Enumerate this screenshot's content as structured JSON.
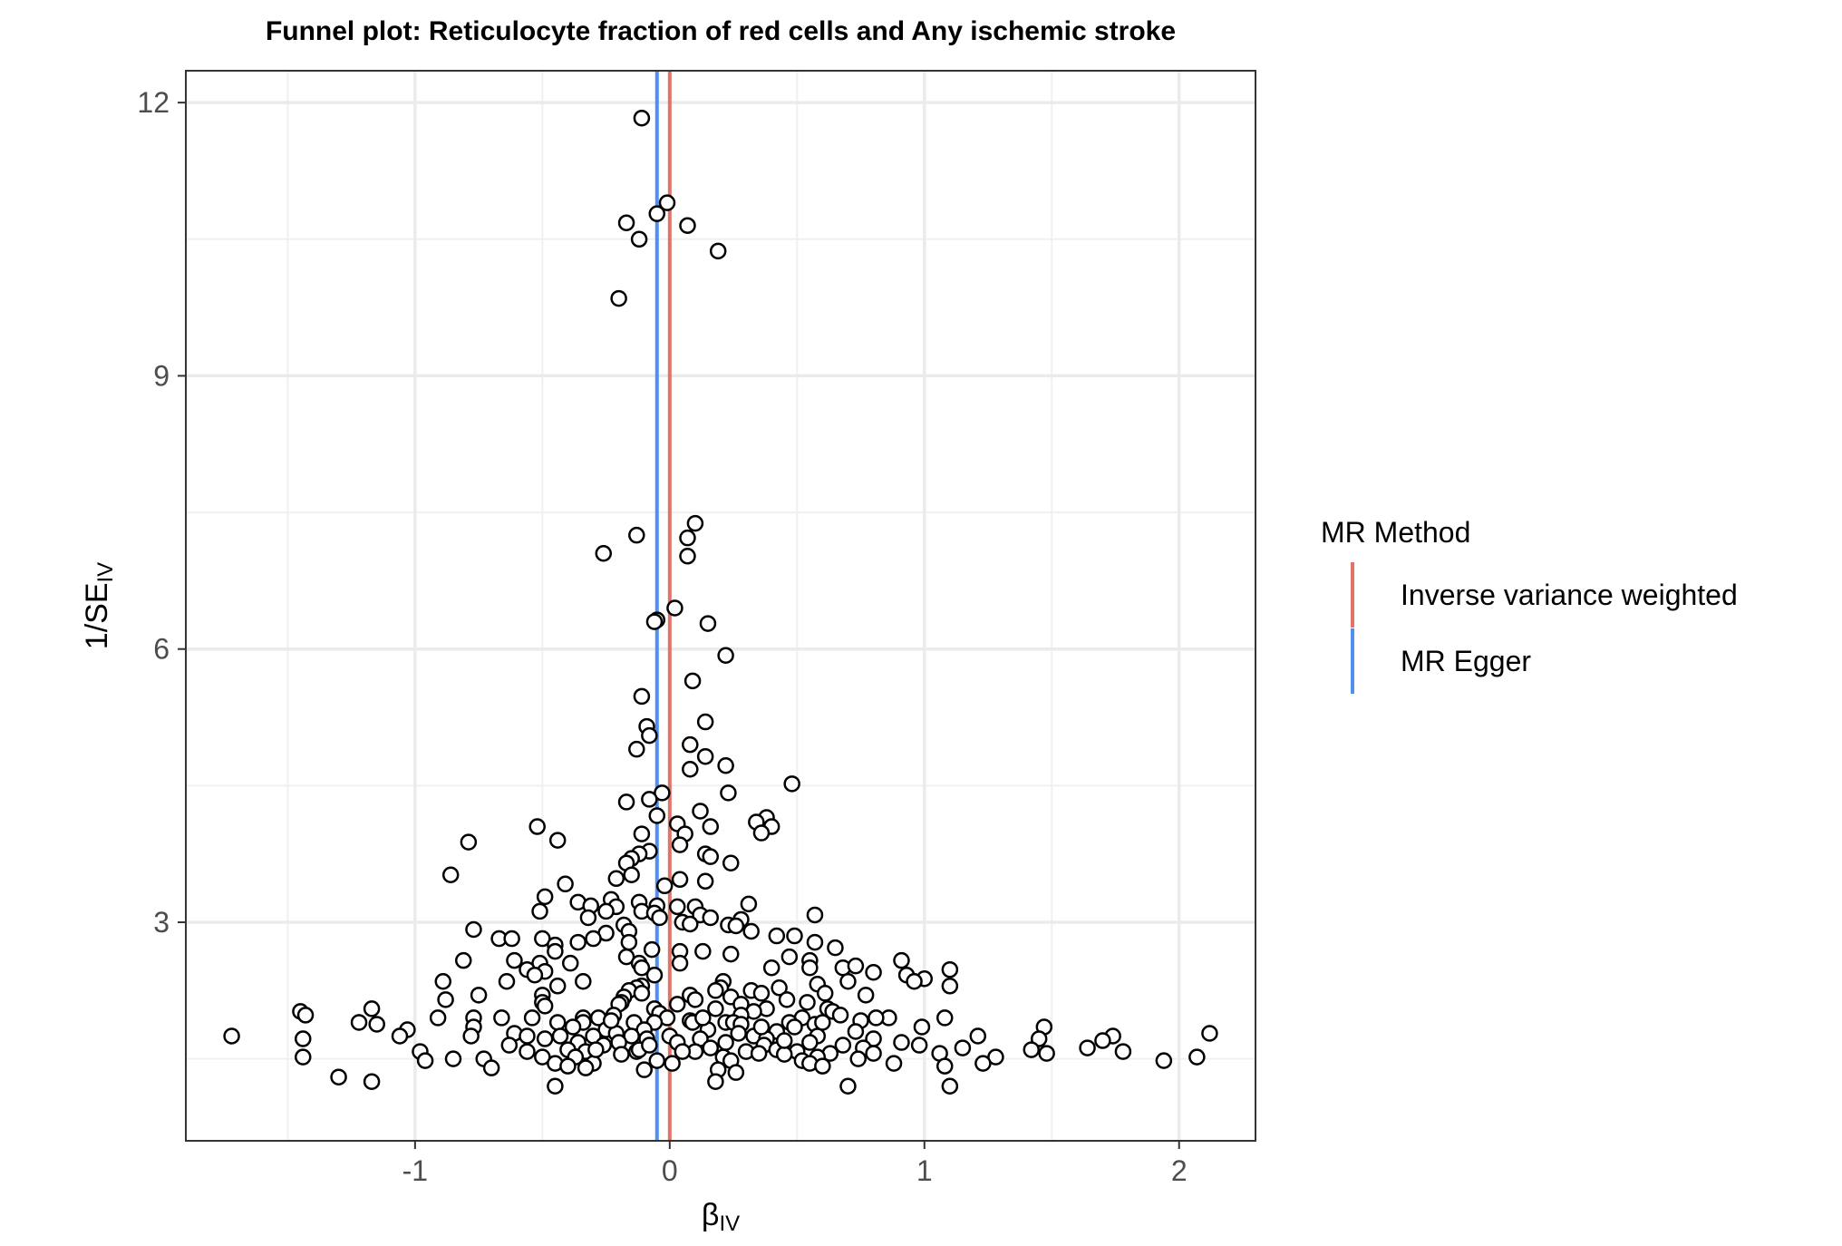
{
  "chart_data": {
    "type": "scatter",
    "title": "Funnel plot: Reticulocyte fraction of red cells and Any ischemic stroke",
    "xlabel": {
      "main": "β",
      "sub": "IV"
    },
    "ylabel": {
      "pre": "1/SE",
      "sub": "IV"
    },
    "xlim": [
      -1.9,
      2.3
    ],
    "ylim": [
      0.6,
      12.35
    ],
    "x_ticks": [
      -1,
      0,
      1,
      2
    ],
    "x_tick_labels": [
      "-1",
      "0",
      "1",
      "2"
    ],
    "y_ticks": [
      3,
      6,
      9,
      12
    ],
    "y_tick_labels": [
      "3",
      "6",
      "9",
      "12"
    ],
    "grid": true,
    "legend": {
      "title": "MR Method",
      "position": "right",
      "entries": [
        {
          "name": "Inverse variance weighted",
          "color": "#e07468",
          "x": 0.0
        },
        {
          "name": "MR Egger",
          "color": "#4f8ff0",
          "x": -0.05
        }
      ]
    },
    "points": [
      [
        -0.11,
        11.83
      ],
      [
        -0.01,
        10.9
      ],
      [
        -0.05,
        10.78
      ],
      [
        -0.17,
        10.68
      ],
      [
        0.07,
        10.65
      ],
      [
        -0.12,
        10.5
      ],
      [
        0.19,
        10.37
      ],
      [
        -0.2,
        9.85
      ],
      [
        0.1,
        7.38
      ],
      [
        -0.13,
        7.25
      ],
      [
        0.07,
        7.22
      ],
      [
        -0.26,
        7.05
      ],
      [
        0.07,
        7.02
      ],
      [
        0.02,
        6.45
      ],
      [
        -0.05,
        6.32
      ],
      [
        -0.06,
        6.3
      ],
      [
        0.15,
        6.28
      ],
      [
        0.22,
        5.93
      ],
      [
        0.09,
        5.65
      ],
      [
        -0.11,
        5.48
      ],
      [
        0.14,
        5.2
      ],
      [
        -0.09,
        5.15
      ],
      [
        -0.08,
        5.05
      ],
      [
        0.08,
        4.95
      ],
      [
        -0.13,
        4.9
      ],
      [
        0.14,
        4.82
      ],
      [
        0.22,
        4.72
      ],
      [
        0.08,
        4.68
      ],
      [
        0.48,
        4.52
      ],
      [
        -0.03,
        4.42
      ],
      [
        0.23,
        4.42
      ],
      [
        -0.08,
        4.35
      ],
      [
        -0.17,
        4.32
      ],
      [
        0.12,
        4.22
      ],
      [
        -0.05,
        4.17
      ],
      [
        0.38,
        4.15
      ],
      [
        0.34,
        4.1
      ],
      [
        0.03,
        4.08
      ],
      [
        0.16,
        4.05
      ],
      [
        -0.52,
        4.05
      ],
      [
        0.4,
        4.05
      ],
      [
        0.36,
        3.98
      ],
      [
        0.06,
        3.97
      ],
      [
        -0.11,
        3.97
      ],
      [
        -0.44,
        3.9
      ],
      [
        -0.79,
        3.88
      ],
      [
        0.04,
        3.85
      ],
      [
        -0.08,
        3.78
      ],
      [
        -0.12,
        3.75
      ],
      [
        0.14,
        3.75
      ],
      [
        -0.15,
        3.7
      ],
      [
        0.16,
        3.72
      ],
      [
        -0.17,
        3.65
      ],
      [
        0.24,
        3.65
      ],
      [
        -0.86,
        3.52
      ],
      [
        -0.15,
        3.52
      ],
      [
        -0.21,
        3.48
      ],
      [
        0.04,
        3.47
      ],
      [
        0.14,
        3.45
      ],
      [
        -0.41,
        3.42
      ],
      [
        -0.02,
        3.4
      ],
      [
        -0.49,
        3.28
      ],
      [
        -0.23,
        3.25
      ],
      [
        -0.36,
        3.22
      ],
      [
        -0.12,
        3.22
      ],
      [
        0.31,
        3.2
      ],
      [
        -0.31,
        3.18
      ],
      [
        -0.05,
        3.18
      ],
      [
        0.03,
        3.17
      ],
      [
        -0.21,
        3.17
      ],
      [
        0.1,
        3.17
      ],
      [
        -0.25,
        3.12
      ],
      [
        -0.51,
        3.12
      ],
      [
        -0.11,
        3.12
      ],
      [
        -0.06,
        3.1
      ],
      [
        0.12,
        3.08
      ],
      [
        0.57,
        3.08
      ],
      [
        -0.32,
        3.05
      ],
      [
        0.16,
        3.05
      ],
      [
        -0.04,
        3.05
      ],
      [
        0.28,
        3.03
      ],
      [
        0.05,
        3.0
      ],
      [
        0.08,
        2.98
      ],
      [
        -0.18,
        2.97
      ],
      [
        0.23,
        2.97
      ],
      [
        0.26,
        2.96
      ],
      [
        -0.16,
        2.9
      ],
      [
        0.32,
        2.9
      ],
      [
        -0.77,
        2.92
      ],
      [
        -0.25,
        2.88
      ],
      [
        0.42,
        2.85
      ],
      [
        0.49,
        2.85
      ],
      [
        -0.67,
        2.82
      ],
      [
        -0.62,
        2.82
      ],
      [
        -0.3,
        2.82
      ],
      [
        -0.5,
        2.82
      ],
      [
        -0.36,
        2.78
      ],
      [
        -0.16,
        2.78
      ],
      [
        0.57,
        2.78
      ],
      [
        -0.45,
        2.75
      ],
      [
        0.65,
        2.72
      ],
      [
        -0.07,
        2.7
      ],
      [
        0.04,
        2.68
      ],
      [
        0.13,
        2.68
      ],
      [
        -0.45,
        2.68
      ],
      [
        0.24,
        2.65
      ],
      [
        0.47,
        2.62
      ],
      [
        -0.17,
        2.62
      ],
      [
        -0.81,
        2.58
      ],
      [
        -0.61,
        2.58
      ],
      [
        0.55,
        2.58
      ],
      [
        0.91,
        2.58
      ],
      [
        -0.51,
        2.55
      ],
      [
        -0.39,
        2.55
      ],
      [
        0.04,
        2.55
      ],
      [
        -0.12,
        2.55
      ],
      [
        -0.11,
        2.5
      ],
      [
        0.4,
        2.5
      ],
      [
        0.55,
        2.5
      ],
      [
        0.68,
        2.5
      ],
      [
        0.73,
        2.52
      ],
      [
        1.1,
        2.48
      ],
      [
        -0.56,
        2.48
      ],
      [
        -0.49,
        2.46
      ],
      [
        0.8,
        2.45
      ],
      [
        0.93,
        2.42
      ],
      [
        -0.06,
        2.42
      ],
      [
        -0.53,
        2.42
      ],
      [
        1.0,
        2.38
      ],
      [
        -0.89,
        2.35
      ],
      [
        -0.64,
        2.35
      ],
      [
        0.21,
        2.35
      ],
      [
        0.7,
        2.35
      ],
      [
        -0.34,
        2.35
      ],
      [
        0.96,
        2.35
      ],
      [
        0.58,
        2.32
      ],
      [
        -0.44,
        2.3
      ],
      [
        -0.11,
        2.3
      ],
      [
        1.1,
        2.3
      ],
      [
        0.43,
        2.28
      ],
      [
        0.2,
        2.28
      ],
      [
        -0.13,
        2.28
      ],
      [
        0.18,
        2.25
      ],
      [
        0.32,
        2.25
      ],
      [
        -0.16,
        2.25
      ],
      [
        0.36,
        2.22
      ],
      [
        -0.11,
        2.22
      ],
      [
        0.61,
        2.22
      ],
      [
        0.77,
        2.2
      ],
      [
        -0.75,
        2.2
      ],
      [
        -0.5,
        2.2
      ],
      [
        0.08,
        2.2
      ],
      [
        0.24,
        2.18
      ],
      [
        -0.18,
        2.18
      ],
      [
        0.46,
        2.15
      ],
      [
        -0.88,
        2.15
      ],
      [
        0.1,
        2.15
      ],
      [
        0.54,
        2.12
      ],
      [
        -0.5,
        2.12
      ],
      [
        -0.19,
        2.12
      ],
      [
        0.03,
        2.1
      ],
      [
        0.28,
        2.1
      ],
      [
        -0.2,
        2.1
      ],
      [
        -0.49,
        2.08
      ],
      [
        0.62,
        2.05
      ],
      [
        0.38,
        2.05
      ],
      [
        -1.17,
        2.05
      ],
      [
        -0.06,
        2.05
      ],
      [
        0.18,
        2.05
      ],
      [
        -1.45,
        2.02
      ],
      [
        0.64,
        2.02
      ],
      [
        0.33,
        2.02
      ],
      [
        -0.04,
        2.0
      ],
      [
        -1.43,
        1.98
      ],
      [
        0.28,
        1.98
      ],
      [
        -0.22,
        1.98
      ],
      [
        0.67,
        1.98
      ],
      [
        -0.28,
        1.95
      ],
      [
        0.52,
        1.95
      ],
      [
        -0.91,
        1.95
      ],
      [
        -0.77,
        1.95
      ],
      [
        -0.01,
        1.95
      ],
      [
        1.08,
        1.95
      ],
      [
        -0.34,
        1.95
      ],
      [
        0.08,
        1.92
      ],
      [
        0.75,
        1.92
      ],
      [
        0.86,
        1.95
      ],
      [
        0.81,
        1.95
      ],
      [
        -0.54,
        1.95
      ],
      [
        -0.66,
        1.95
      ],
      [
        -1.22,
        1.9
      ],
      [
        -0.44,
        1.9
      ],
      [
        0.22,
        1.9
      ],
      [
        0.25,
        1.9
      ],
      [
        0.47,
        1.9
      ],
      [
        -0.34,
        1.9
      ],
      [
        -0.14,
        1.9
      ],
      [
        -0.06,
        1.9
      ],
      [
        0.09,
        1.9
      ],
      [
        -1.15,
        1.88
      ],
      [
        0.28,
        1.88
      ],
      [
        0.57,
        1.88
      ],
      [
        0.99,
        1.85
      ],
      [
        -0.77,
        1.85
      ],
      [
        -0.38,
        1.85
      ],
      [
        0.49,
        1.85
      ],
      [
        1.47,
        1.85
      ],
      [
        -0.25,
        1.82
      ],
      [
        -0.1,
        1.82
      ],
      [
        0.15,
        1.82
      ],
      [
        -1.03,
        1.82
      ],
      [
        0.42,
        1.8
      ],
      [
        0.73,
        1.8
      ],
      [
        -0.61,
        1.78
      ],
      [
        -0.21,
        1.78
      ],
      [
        2.12,
        1.78
      ],
      [
        0.27,
        1.78
      ],
      [
        -1.72,
        1.75
      ],
      [
        -1.06,
        1.75
      ],
      [
        -0.78,
        1.75
      ],
      [
        -0.56,
        1.75
      ],
      [
        -0.43,
        1.75
      ],
      [
        -0.3,
        1.75
      ],
      [
        -0.15,
        1.75
      ],
      [
        0.0,
        1.75
      ],
      [
        0.33,
        1.75
      ],
      [
        0.58,
        1.75
      ],
      [
        1.21,
        1.75
      ],
      [
        1.74,
        1.75
      ],
      [
        1.45,
        1.72
      ],
      [
        -1.44,
        1.72
      ],
      [
        -0.49,
        1.72
      ],
      [
        -0.09,
        1.72
      ],
      [
        0.12,
        1.72
      ],
      [
        0.38,
        1.72
      ],
      [
        0.8,
        1.72
      ],
      [
        1.7,
        1.7
      ],
      [
        -0.36,
        1.68
      ],
      [
        0.22,
        1.68
      ],
      [
        0.55,
        1.68
      ],
      [
        0.91,
        1.68
      ],
      [
        -0.2,
        1.68
      ],
      [
        0.03,
        1.68
      ],
      [
        0.98,
        1.65
      ],
      [
        0.68,
        1.65
      ],
      [
        -0.63,
        1.65
      ],
      [
        -0.26,
        1.65
      ],
      [
        0.37,
        1.65
      ],
      [
        0.76,
        1.62
      ],
      [
        1.64,
        1.62
      ],
      [
        1.15,
        1.62
      ],
      [
        0.16,
        1.62
      ],
      [
        0.42,
        1.6
      ],
      [
        -0.4,
        1.6
      ],
      [
        1.42,
        1.6
      ],
      [
        -0.98,
        1.58
      ],
      [
        0.1,
        1.58
      ],
      [
        -0.56,
        1.58
      ],
      [
        0.3,
        1.58
      ],
      [
        0.5,
        1.58
      ],
      [
        -0.13,
        1.58
      ],
      [
        1.78,
        1.58
      ],
      [
        0.05,
        1.58
      ],
      [
        -0.33,
        1.58
      ],
      [
        0.63,
        1.56
      ],
      [
        0.8,
        1.56
      ],
      [
        1.06,
        1.56
      ],
      [
        1.48,
        1.56
      ],
      [
        0.35,
        1.56
      ],
      [
        -0.19,
        1.55
      ],
      [
        0.45,
        1.55
      ],
      [
        0.58,
        1.52
      ],
      [
        1.28,
        1.52
      ],
      [
        -1.44,
        1.52
      ],
      [
        -0.5,
        1.52
      ],
      [
        -0.37,
        1.52
      ],
      [
        0.21,
        1.52
      ],
      [
        0.74,
        1.5
      ],
      [
        -0.85,
        1.5
      ],
      [
        -0.73,
        1.5
      ],
      [
        -0.96,
        1.48
      ],
      [
        0.52,
        1.48
      ],
      [
        -0.05,
        1.48
      ],
      [
        1.94,
        1.48
      ],
      [
        0.24,
        1.48
      ],
      [
        1.23,
        1.45
      ],
      [
        0.88,
        1.45
      ],
      [
        -0.3,
        1.45
      ],
      [
        2.07,
        1.52
      ],
      [
        0.55,
        1.45
      ],
      [
        0.01,
        1.45
      ],
      [
        -0.45,
        1.45
      ],
      [
        0.6,
        1.42
      ],
      [
        1.08,
        1.42
      ],
      [
        -0.4,
        1.42
      ],
      [
        -0.7,
        1.4
      ],
      [
        -0.33,
        1.4
      ],
      [
        -0.1,
        1.38
      ],
      [
        0.19,
        1.38
      ],
      [
        0.26,
        1.35
      ],
      [
        -1.3,
        1.3
      ],
      [
        -1.17,
        1.25
      ],
      [
        0.18,
        1.25
      ],
      [
        -0.45,
        1.2
      ],
      [
        0.7,
        1.2
      ],
      [
        1.1,
        1.2
      ],
      [
        -0.12,
        1.6
      ],
      [
        0.13,
        1.95
      ],
      [
        -0.29,
        1.6
      ],
      [
        0.36,
        1.85
      ],
      [
        -0.23,
        1.92
      ],
      [
        0.45,
        1.7
      ],
      [
        -0.08,
        1.65
      ],
      [
        0.6,
        1.9
      ]
    ]
  }
}
